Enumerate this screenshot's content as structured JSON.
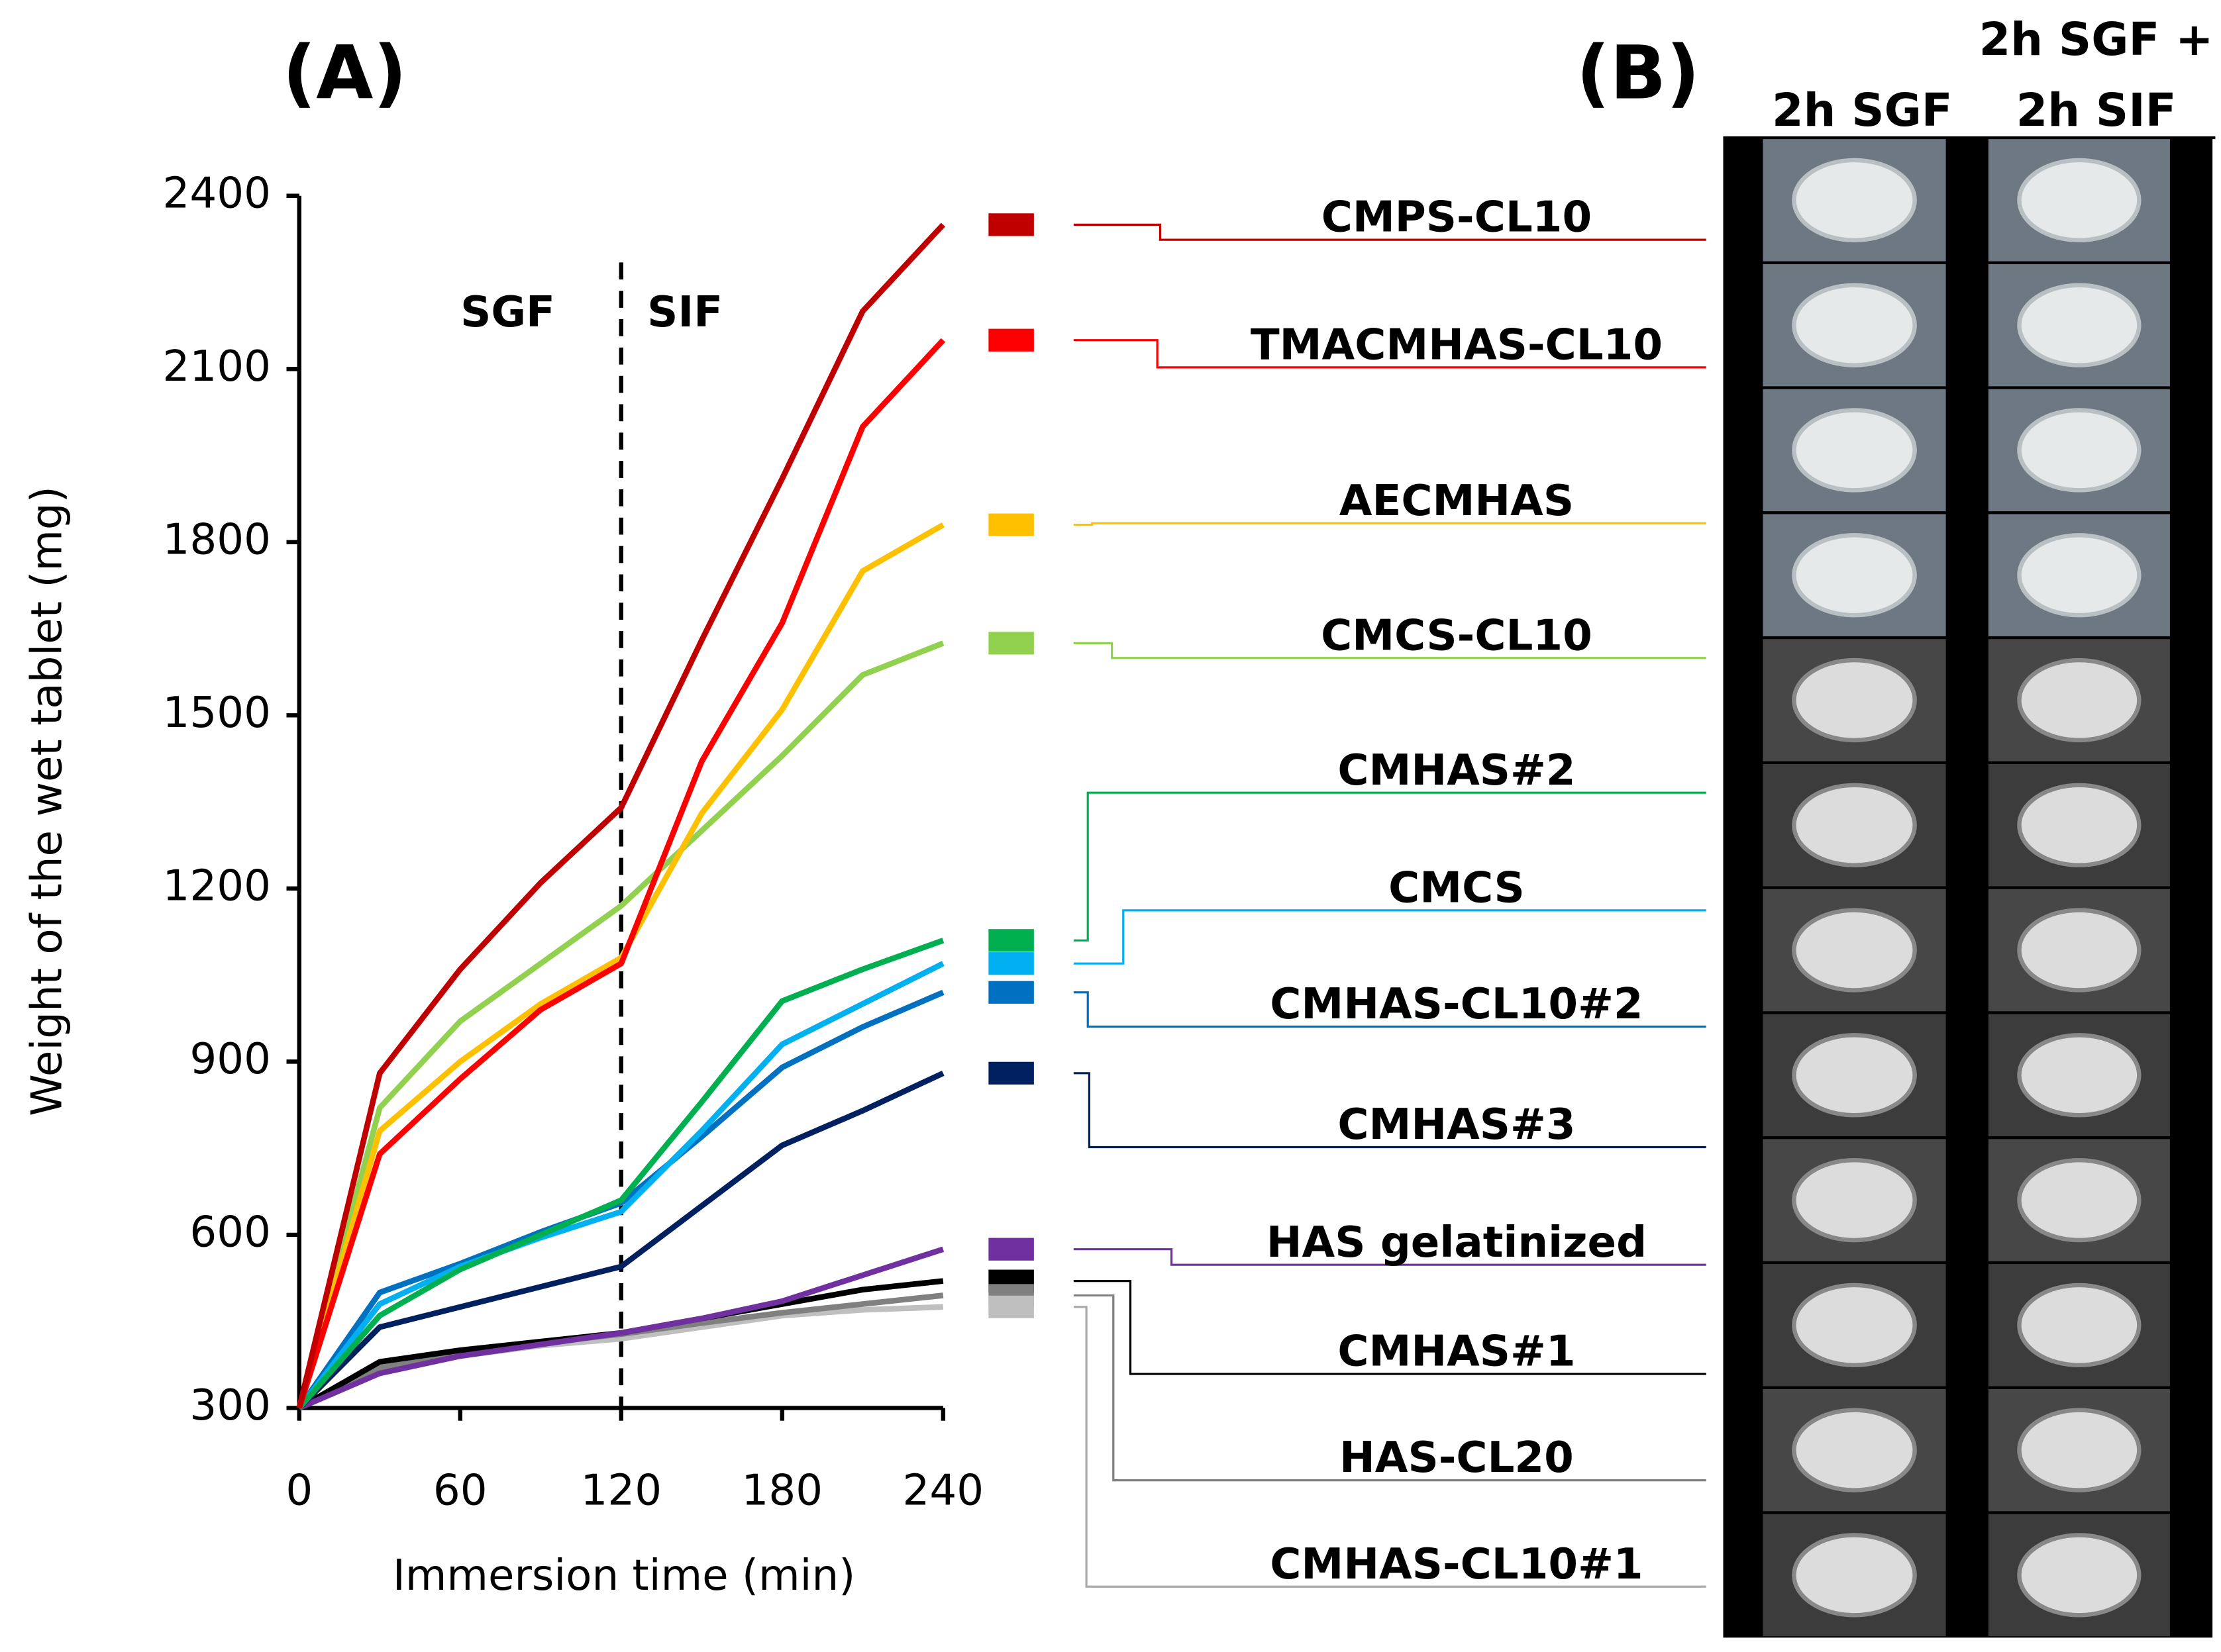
{
  "chart_data": {
    "type": "line",
    "title": "(A)",
    "x_label": "Immersion time (min)",
    "y_label": "Weight of the wet tablet (mg)",
    "annotations": [
      "SGF",
      "SIF"
    ],
    "x": [
      0,
      30,
      60,
      90,
      120,
      150,
      180,
      210,
      240
    ],
    "xlim": [
      0,
      240
    ],
    "xticks": [
      0,
      60,
      120,
      180,
      240
    ],
    "ylim": [
      300,
      2400
    ],
    "yticks": [
      300,
      600,
      900,
      1200,
      1500,
      1800,
      2100,
      2400
    ],
    "divider_x": 120,
    "series": [
      {
        "name": "CMPS-CL10",
        "color": "#c00000",
        "values": [
          300,
          880,
          1060,
          1210,
          1340,
          1630,
          1910,
          2200,
          2350
        ]
      },
      {
        "name": "TMACMHAS-CL10",
        "color": "#ff0000",
        "values": [
          300,
          740,
          870,
          990,
          1070,
          1420,
          1660,
          2000,
          2150
        ]
      },
      {
        "name": "AECMHAS",
        "color": "#ffc000",
        "values": [
          300,
          780,
          900,
          1000,
          1080,
          1330,
          1510,
          1750,
          1830
        ]
      },
      {
        "name": "CMCS-CL10",
        "color": "#92d050",
        "values": [
          300,
          820,
          970,
          1070,
          1170,
          1300,
          1430,
          1570,
          1625
        ]
      },
      {
        "name": "CMHAS#2",
        "color": "#00b050",
        "values": [
          300,
          460,
          540,
          600,
          660,
          830,
          1005,
          1060,
          1110
        ]
      },
      {
        "name": "CMCS",
        "color": "#00b0f0",
        "values": [
          300,
          480,
          545,
          595,
          640,
          780,
          930,
          1000,
          1070
        ]
      },
      {
        "name": "CMHAS-CL10#2",
        "color": "#0070c0",
        "values": [
          300,
          500,
          550,
          605,
          655,
          770,
          890,
          960,
          1020
        ]
      },
      {
        "name": "CMHAS#3",
        "color": "#002060",
        "values": [
          300,
          440,
          475,
          510,
          545,
          650,
          755,
          815,
          880
        ]
      },
      {
        "name": "HAS gelatinized",
        "color": "#7030a0",
        "values": [
          300,
          360,
          390,
          410,
          430,
          455,
          485,
          530,
          575
        ]
      },
      {
        "name": "CMHAS#1",
        "color": "#000000",
        "values": [
          300,
          380,
          400,
          415,
          430,
          455,
          480,
          505,
          520
        ]
      },
      {
        "name": "HAS-CL20",
        "color": "#808080",
        "values": [
          300,
          370,
          395,
          412,
          428,
          447,
          465,
          480,
          495
        ]
      },
      {
        "name": "CMHAS-CL10#1",
        "color": "#bfbfbf",
        "values": [
          300,
          365,
          390,
          408,
          420,
          440,
          460,
          470,
          475
        ]
      }
    ]
  },
  "panel_b": {
    "title": "(B)",
    "columns": [
      {
        "lines": [
          "2h SGF"
        ]
      },
      {
        "lines": [
          "2h SGF +",
          "2h SIF"
        ]
      }
    ]
  }
}
